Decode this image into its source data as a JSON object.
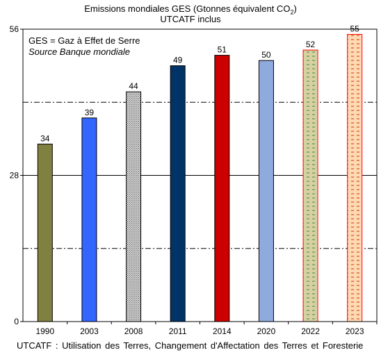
{
  "title_line1": "Emissions mondiales  GES  (Gtonnes  équivalent  CO",
  "title_sub": "2",
  "title_close": ")",
  "subtitle": "UTCATF inclus",
  "annotation_line1": "GES = Gaz à Effet de Serre",
  "annotation_line2": "Source Banque mondiale",
  "footer": "UTCATF  : Utilisation des Terres,  Changement  d'Affectation  des Terres et Foresterie",
  "chart_data": {
    "type": "bar",
    "categories": [
      "1990",
      "2003",
      "2008",
      "2011",
      "2014",
      "2020",
      "2022",
      "2023"
    ],
    "values": [
      34,
      39,
      44,
      49,
      51,
      50,
      52,
      55
    ],
    "data_labels": [
      "34",
      "39",
      "44",
      "49",
      "51",
      "50",
      "52",
      "55"
    ],
    "ylim": [
      0,
      56
    ],
    "yticks": [
      "0",
      "28",
      "56"
    ],
    "grid": "horizontal solid line at 28; dash-dot lines at 14 and 42",
    "bar_fills": [
      {
        "color": "#808040",
        "pattern": "solid"
      },
      {
        "color": "#3366ff",
        "pattern": "solid"
      },
      {
        "color": "#c0c0c0",
        "pattern": "dotted"
      },
      {
        "color": "#003366",
        "pattern": "solid"
      },
      {
        "color": "#cc0000",
        "pattern": "solid"
      },
      {
        "color": "#8faadc",
        "pattern": "solid"
      },
      {
        "color": "#d9d0a0",
        "pattern": "dashed",
        "border": "#ff0000"
      },
      {
        "color": "#ffd9b3",
        "pattern": "dashed",
        "border": "#ff0000"
      }
    ],
    "annotation_position": "top-left"
  }
}
